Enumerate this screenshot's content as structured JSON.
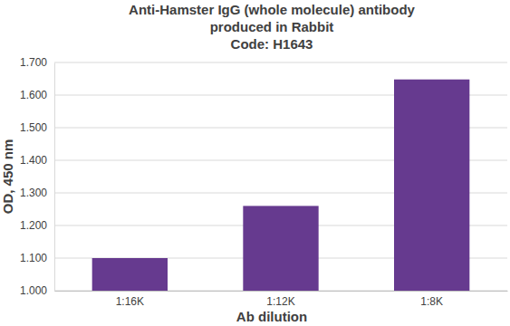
{
  "chart_data": {
    "type": "bar",
    "title": [
      "Anti-Hamster IgG (whole molecule) antibody",
      "produced in Rabbit",
      "Code: H1643"
    ],
    "x_label": "Ab dilution",
    "y_label": "OD, 450 nm",
    "categories": [
      "1:16K",
      "1:12K",
      "1:8K"
    ],
    "values": [
      1.1,
      1.26,
      1.648
    ],
    "color": "#663a8f",
    "ylim": [
      1.0,
      1.7
    ],
    "yticks": [
      {
        "value": 1.0,
        "label": "1.000"
      },
      {
        "value": 1.1,
        "label": "1.100"
      },
      {
        "value": 1.2,
        "label": "1.200"
      },
      {
        "value": 1.3,
        "label": "1.300"
      },
      {
        "value": 1.4,
        "label": "1.400"
      },
      {
        "value": 1.5,
        "label": "1.500"
      },
      {
        "value": 1.6,
        "label": "1.600"
      },
      {
        "value": 1.7,
        "label": "1.700"
      }
    ],
    "grid": true
  }
}
